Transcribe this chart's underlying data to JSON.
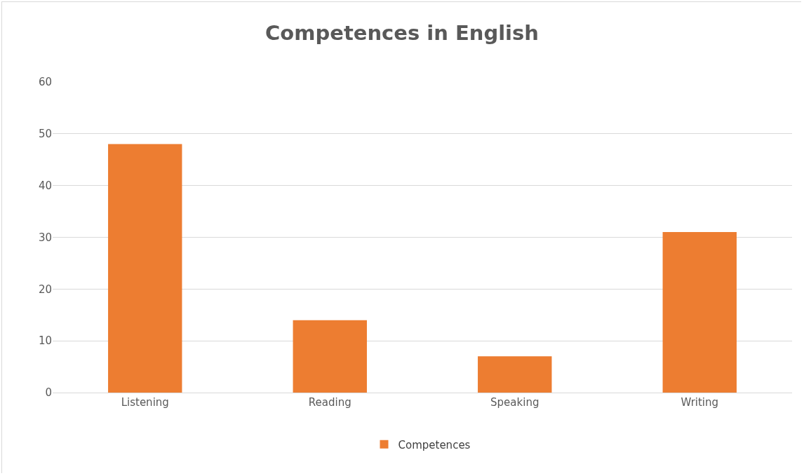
{
  "chart_data": {
    "type": "bar",
    "title": "Competences in English",
    "categories": [
      "Listening",
      "Reading",
      "Speaking",
      "Writing"
    ],
    "series": [
      {
        "name": "Competences",
        "color": "#ed7d31",
        "values": [
          48,
          14,
          7,
          31
        ]
      }
    ],
    "ylim": [
      0,
      60
    ],
    "yticks": [
      0,
      10,
      20,
      30,
      40,
      50,
      60
    ],
    "grid": "y",
    "legend": "bottom"
  }
}
